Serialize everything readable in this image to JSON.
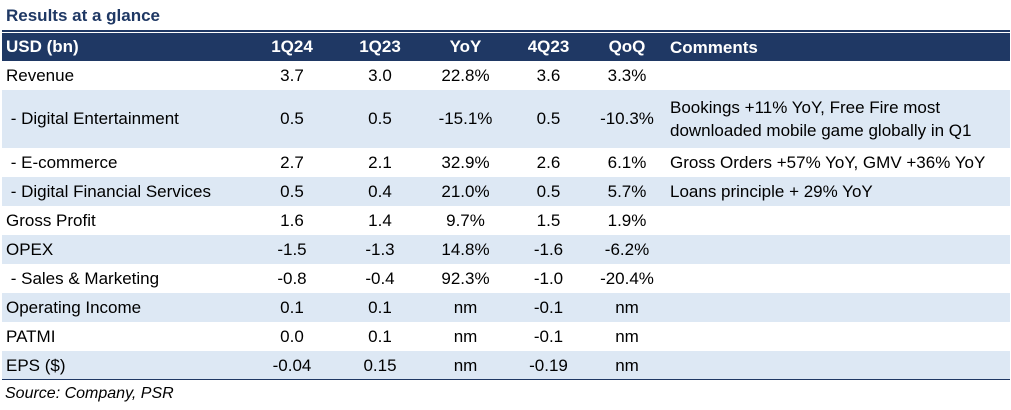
{
  "title": "Results at a glance",
  "columns": [
    "USD (bn)",
    "1Q24",
    "1Q23",
    "YoY",
    "4Q23",
    "QoQ",
    "Comments"
  ],
  "rows": [
    {
      "label": "Revenue",
      "c1": "3.7",
      "c2": "3.0",
      "c3": "22.8%",
      "c4": "3.6",
      "c5": "3.3%",
      "comment": ""
    },
    {
      "label": " - Digital Entertainment",
      "c1": "0.5",
      "c2": "0.5",
      "c3": "-15.1%",
      "c4": "0.5",
      "c5": "-10.3%",
      "comment": "Bookings +11% YoY, Free Fire most downloaded mobile game globally in Q1"
    },
    {
      "label": " - E-commerce",
      "c1": "2.7",
      "c2": "2.1",
      "c3": "32.9%",
      "c4": "2.6",
      "c5": "6.1%",
      "comment": "Gross Orders +57% YoY, GMV +36% YoY"
    },
    {
      "label": " - Digital Financial Services",
      "c1": "0.5",
      "c2": "0.4",
      "c3": "21.0%",
      "c4": "0.5",
      "c5": "5.7%",
      "comment": "Loans principle + 29% YoY"
    },
    {
      "label": "Gross Profit",
      "c1": "1.6",
      "c2": "1.4",
      "c3": "9.7%",
      "c4": "1.5",
      "c5": "1.9%",
      "comment": ""
    },
    {
      "label": "OPEX",
      "c1": "-1.5",
      "c2": "-1.3",
      "c3": "14.8%",
      "c4": "-1.6",
      "c5": "-6.2%",
      "comment": ""
    },
    {
      "label": " - Sales & Marketing",
      "c1": "-0.8",
      "c2": "-0.4",
      "c3": "92.3%",
      "c4": "-1.0",
      "c5": "-20.4%",
      "comment": ""
    },
    {
      "label": "Operating Income",
      "c1": "0.1",
      "c2": "0.1",
      "c3": "nm",
      "c4": "-0.1",
      "c5": "nm",
      "comment": ""
    },
    {
      "label": "PATMI",
      "c1": "0.0",
      "c2": "0.1",
      "c3": "nm",
      "c4": "-0.1",
      "c5": "nm",
      "comment": ""
    },
    {
      "label": "EPS ($)",
      "c1": "-0.04",
      "c2": "0.15",
      "c3": "nm",
      "c4": "-0.19",
      "c5": "nm",
      "comment": ""
    }
  ],
  "source": "Source: Company, PSR",
  "colors": {
    "header_bg": "#1f3864",
    "shade": "#dde8f4",
    "title": "#1f3864"
  }
}
